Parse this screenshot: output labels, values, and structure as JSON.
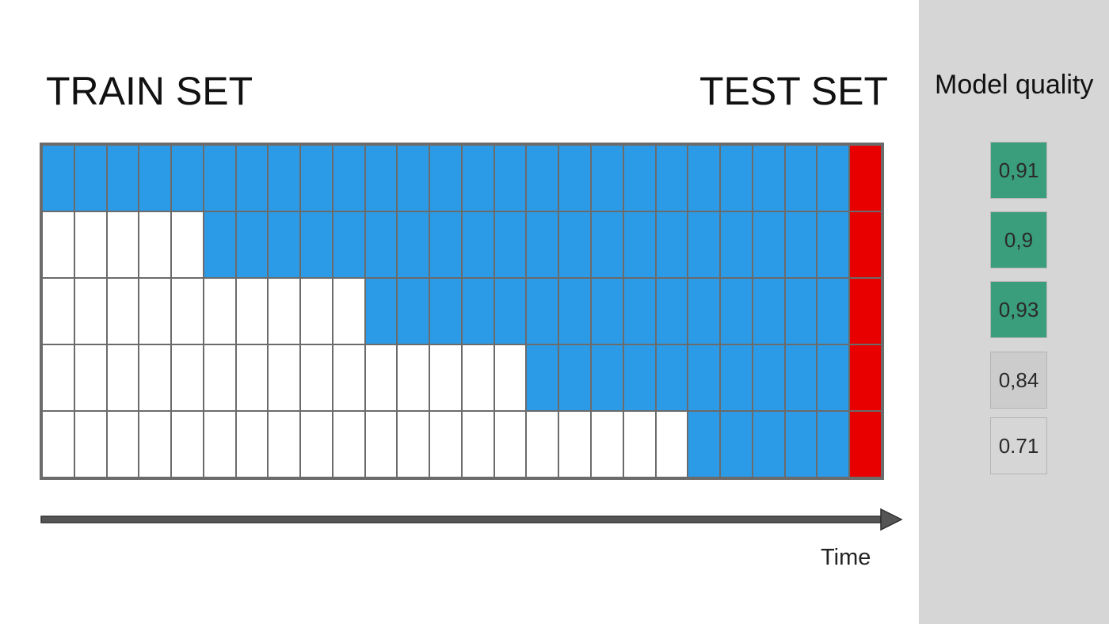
{
  "headings": {
    "train": "TRAIN SET",
    "test": "TEST SET"
  },
  "grid": {
    "columns": 26,
    "train_start_columns": [
      0,
      5,
      10,
      15,
      20
    ],
    "test_column": 25,
    "colors": {
      "train": "#2b9be8",
      "unused": "#ffffff",
      "test": "#e80000",
      "border": "#6b6b6b"
    }
  },
  "axis": {
    "label": "Time"
  },
  "side_panel": {
    "title": "Model quality",
    "scores": [
      {
        "value": "0,91",
        "color": "#3a9e7c"
      },
      {
        "value": "0,9",
        "color": "#3a9e7c"
      },
      {
        "value": "0,93",
        "color": "#3a9e7c"
      },
      {
        "value": "0,84",
        "color": "#cccccc"
      },
      {
        "value": "0.71",
        "color": "#d6d6d6"
      }
    ]
  }
}
